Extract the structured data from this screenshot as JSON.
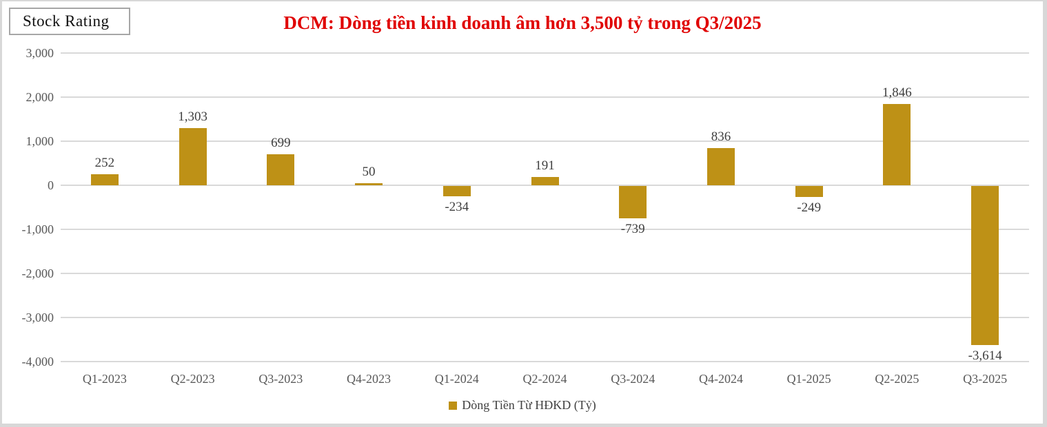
{
  "header": {
    "stock_rating_label": "Stock Rating",
    "title": "DCM: Dòng tiền kinh doanh âm hơn 3,500 tỷ trong Q3/2025"
  },
  "colors": {
    "bar": "#be9116",
    "title_red": "#e00000",
    "axis_text": "#595959",
    "data_label_text": "#3f3f3f",
    "gridline": "#d9d9d9",
    "frame_border": "#d8d8d8",
    "legend_marker": "#be9116"
  },
  "chart_data": {
    "type": "bar",
    "title": "DCM: Dòng tiền kinh doanh âm hơn 3,500 tỷ trong Q3/2025",
    "categories": [
      "Q1-2023",
      "Q2-2023",
      "Q3-2023",
      "Q4-2023",
      "Q1-2024",
      "Q2-2024",
      "Q3-2024",
      "Q4-2024",
      "Q1-2025",
      "Q2-2025",
      "Q3-2025"
    ],
    "series": [
      {
        "name": "Dòng Tiền Từ HĐKD (Tỷ)",
        "values": [
          252,
          1303,
          699,
          50,
          -234,
          191,
          -739,
          836,
          -249,
          1846,
          -3614
        ],
        "data_labels": [
          "252",
          "1,303",
          "699",
          "50",
          "-234",
          "191",
          "-739",
          "836",
          "-249",
          "1,846",
          "-3,614"
        ]
      }
    ],
    "xlabel": "",
    "ylabel": "",
    "ylim": [
      -4000,
      3000
    ],
    "ytick_step": 1000,
    "yticks": [
      {
        "value": 3000,
        "label": "3,000"
      },
      {
        "value": 2000,
        "label": "2,000"
      },
      {
        "value": 1000,
        "label": "1,000"
      },
      {
        "value": 0,
        "label": "0"
      },
      {
        "value": -1000,
        "label": "-1,000"
      },
      {
        "value": -2000,
        "label": "-2,000"
      },
      {
        "value": -3000,
        "label": "-3,000"
      },
      {
        "value": -4000,
        "label": "-4,000"
      }
    ],
    "grid": true,
    "legend_position": "bottom"
  },
  "legend": {
    "label": "Dòng Tiền Từ HĐKD (Tỷ)"
  }
}
